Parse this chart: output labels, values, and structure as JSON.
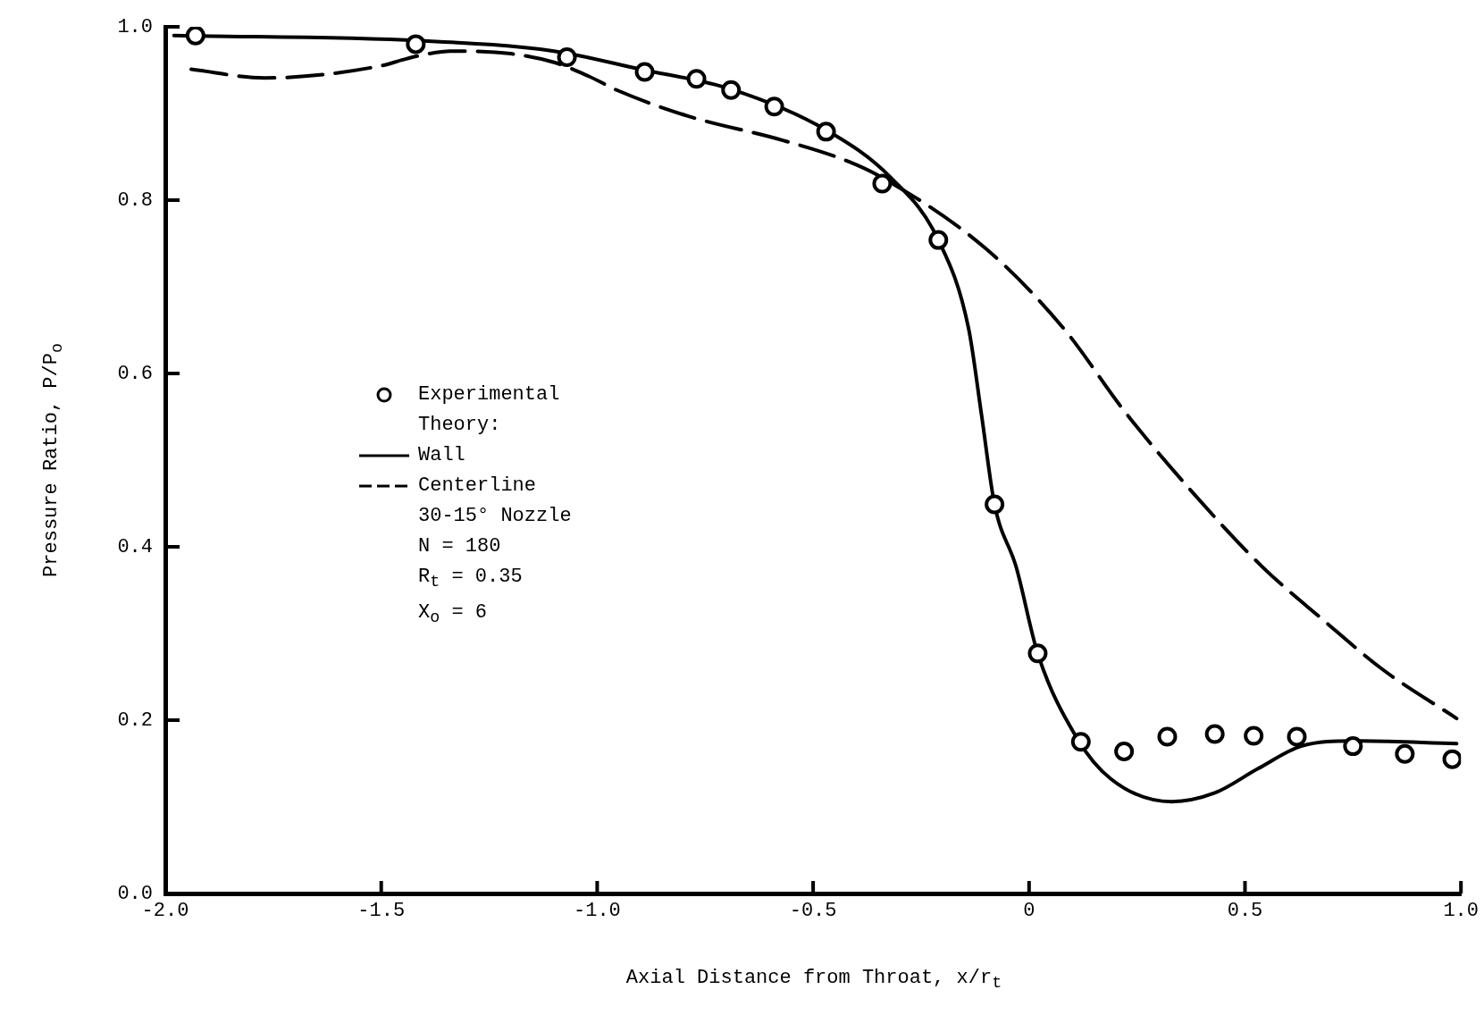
{
  "chart_data": {
    "type": "line",
    "xlabel": "Axial Distance from Throat, x/r$_{t}$",
    "ylabel": "Pressure Ratio, P/P$_{o}$",
    "xlim": [
      -2.0,
      1.0
    ],
    "ylim": [
      0.0,
      1.0
    ],
    "xticks": [
      {
        "value": -2,
        "label": "-2.0"
      },
      {
        "value": -1.5,
        "label": "-1.5"
      },
      {
        "value": -1,
        "label": "-1.0"
      },
      {
        "value": -0.5,
        "label": "-0.5"
      },
      0,
      {
        "value": 0.5,
        "label": "0.5"
      },
      {
        "value": 1,
        "label": "1.0"
      }
    ],
    "yticks": [
      {
        "value": 0,
        "label": "0.0"
      },
      0.2,
      0.4,
      0.6,
      0.8,
      {
        "value": 1,
        "label": "1.0"
      }
    ],
    "grid": false,
    "legend": "left",
    "annotations": [
      "Theory:",
      "30-15° Nozzle",
      "N = 180",
      "R$_{t}$ = 0.35",
      "X$_{o}$ = 6"
    ],
    "series": [
      {
        "name": "Experimental",
        "type": "scatter",
        "color": "#000000",
        "marker": "circle",
        "x": [
          -1.93,
          -1.42,
          -1.07,
          -0.89,
          -0.77,
          -0.69,
          -0.59,
          -0.47,
          -0.34,
          -0.21,
          -0.08,
          0.02,
          0.12,
          0.22,
          0.32,
          0.43,
          0.52,
          0.62,
          0.75,
          0.87,
          0.98
        ],
        "values": [
          0.99,
          0.98,
          0.965,
          0.948,
          0.94,
          0.927,
          0.908,
          0.879,
          0.819,
          0.754,
          0.449,
          0.277,
          0.175,
          0.164,
          0.181,
          0.184,
          0.182,
          0.181,
          0.17,
          0.161,
          0.155
        ]
      },
      {
        "name": "Wall",
        "type": "line",
        "color": "#000000",
        "marker": "none",
        "line_style": "solid",
        "x": [
          -1.98,
          -1.41,
          -1.1,
          -0.9,
          -0.69,
          -0.47,
          -0.32,
          -0.21,
          -0.14,
          -0.11,
          -0.08,
          -0.03,
          0.02,
          0.11,
          0.19,
          0.33,
          0.43,
          0.53,
          0.63,
          0.75,
          0.99
        ],
        "values": [
          0.99,
          0.984,
          0.972,
          0.951,
          0.928,
          0.881,
          0.826,
          0.754,
          0.652,
          0.552,
          0.449,
          0.377,
          0.277,
          0.18,
          0.132,
          0.106,
          0.116,
          0.144,
          0.17,
          0.176,
          0.173
        ]
      },
      {
        "name": "Centerline",
        "type": "line",
        "color": "#000000",
        "marker": "none",
        "line_style": "dashed",
        "x": [
          -1.94,
          -1.77,
          -1.5,
          -1.45,
          -1.39,
          -1.34,
          -1.2,
          -1.1,
          -1.02,
          -0.95,
          -0.79,
          -0.57,
          -0.42,
          -0.34,
          -0.1,
          0.08,
          0.22,
          0.38,
          0.54,
          0.68,
          0.82,
          0.99
        ],
        "values": [
          0.951,
          0.941,
          0.955,
          0.962,
          0.969,
          0.972,
          0.969,
          0.959,
          0.943,
          0.926,
          0.897,
          0.869,
          0.845,
          0.826,
          0.744,
          0.652,
          0.557,
          0.462,
          0.377,
          0.316,
          0.258,
          0.202
        ]
      }
    ]
  }
}
